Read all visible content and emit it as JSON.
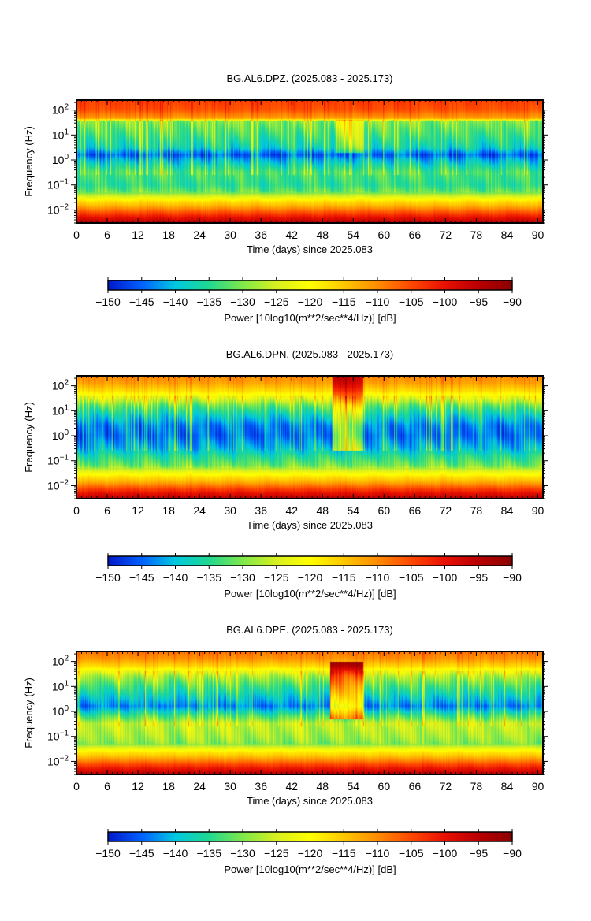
{
  "chart_data": [
    {
      "type": "heatmap",
      "title": "BG.AL6.DPZ. (2025.083 - 2025.173)",
      "xlabel": "Time (days) since 2025.083",
      "ylabel": "Frequency (Hz)",
      "xlim": [
        0,
        91
      ],
      "x_ticks": [
        0,
        6,
        12,
        18,
        24,
        30,
        36,
        42,
        48,
        54,
        60,
        66,
        72,
        78,
        84,
        90
      ],
      "y_scale": "log",
      "ylim": [
        0.003,
        250
      ],
      "y_ticks": [
        {
          "value": 0.01,
          "base": "10",
          "exp": "−2"
        },
        {
          "value": 0.1,
          "base": "10",
          "exp": "−1"
        },
        {
          "value": 1,
          "base": "10",
          "exp": "0"
        },
        {
          "value": 10,
          "base": "10",
          "exp": "1"
        },
        {
          "value": 100,
          "base": "10",
          "exp": "2"
        }
      ],
      "colorbar": {
        "label": "Power [10log10(m**2/sec**4/Hz)] [dB]",
        "range": [
          -150,
          -90
        ],
        "ticks": [
          "−150",
          "−145",
          "−140",
          "−135",
          "−130",
          "−125",
          "−120",
          "−115",
          "−110",
          "−105",
          "−100",
          "−95",
          "−90"
        ],
        "colors": [
          "#0018c8",
          "#0060ff",
          "#00c8e0",
          "#20d890",
          "#7ee84a",
          "#d8f020",
          "#ffff00",
          "#ffc800",
          "#ff8c00",
          "#ff4800",
          "#e81000",
          "#b80000",
          "#8c0000"
        ]
      },
      "profile": [
        {
          "log_f": -2.5,
          "db": -95
        },
        {
          "log_f": -2.15,
          "db": -104
        },
        {
          "log_f": -1.85,
          "db": -113
        },
        {
          "log_f": -1.6,
          "db": -119
        },
        {
          "log_f": -1.3,
          "db": -131
        },
        {
          "log_f": -1.0,
          "db": -135
        },
        {
          "log_f": -0.5,
          "db": -133
        },
        {
          "log_f": 0.0,
          "db": -141
        },
        {
          "log_f": 0.2,
          "db": -146
        },
        {
          "log_f": 0.5,
          "db": -138
        },
        {
          "log_f": 1.0,
          "db": -134
        },
        {
          "log_f": 1.55,
          "db": -130
        },
        {
          "log_f": 1.66,
          "db": -112
        },
        {
          "log_f": 2.0,
          "db": -106
        },
        {
          "log_f": 2.4,
          "db": -104
        }
      ],
      "anomalies": [
        {
          "x_range": [
            50.5,
            56
          ],
          "log_f_range": [
            0.3,
            1.6
          ],
          "db_offset": 8
        }
      ]
    },
    {
      "type": "heatmap",
      "title": "BG.AL6.DPN. (2025.083 - 2025.173)",
      "xlabel": "Time (days) since 2025.083",
      "ylabel": "Frequency (Hz)",
      "xlim": [
        0,
        91
      ],
      "x_ticks": [
        0,
        6,
        12,
        18,
        24,
        30,
        36,
        42,
        48,
        54,
        60,
        66,
        72,
        78,
        84,
        90
      ],
      "y_scale": "log",
      "ylim": [
        0.003,
        250
      ],
      "y_ticks": [
        {
          "value": 0.01,
          "base": "10",
          "exp": "−2"
        },
        {
          "value": 0.1,
          "base": "10",
          "exp": "−1"
        },
        {
          "value": 1,
          "base": "10",
          "exp": "0"
        },
        {
          "value": 10,
          "base": "10",
          "exp": "1"
        },
        {
          "value": 100,
          "base": "10",
          "exp": "2"
        }
      ],
      "colorbar": {
        "label": "Power [10log10(m**2/sec**4/Hz)] [dB]",
        "range": [
          -150,
          -90
        ],
        "ticks": [
          "−150",
          "−145",
          "−140",
          "−135",
          "−130",
          "−125",
          "−120",
          "−115",
          "−110",
          "−105",
          "−100",
          "−95",
          "−90"
        ],
        "colors": [
          "#0018c8",
          "#0060ff",
          "#00c8e0",
          "#20d890",
          "#7ee84a",
          "#d8f020",
          "#ffff00",
          "#ffc800",
          "#ff8c00",
          "#ff4800",
          "#e81000",
          "#b80000",
          "#8c0000"
        ]
      },
      "profile": [
        {
          "log_f": -2.5,
          "db": -95
        },
        {
          "log_f": -2.15,
          "db": -104
        },
        {
          "log_f": -1.85,
          "db": -113
        },
        {
          "log_f": -1.55,
          "db": -120
        },
        {
          "log_f": -1.2,
          "db": -131
        },
        {
          "log_f": -0.8,
          "db": -136
        },
        {
          "log_f": -0.5,
          "db": -141
        },
        {
          "log_f": 0.0,
          "db": -145
        },
        {
          "log_f": 0.4,
          "db": -144
        },
        {
          "log_f": 0.8,
          "db": -139
        },
        {
          "log_f": 1.2,
          "db": -132
        },
        {
          "log_f": 1.45,
          "db": -125
        },
        {
          "log_f": 1.8,
          "db": -117
        },
        {
          "log_f": 2.1,
          "db": -112
        },
        {
          "log_f": 2.4,
          "db": -110
        }
      ],
      "anomalies": [
        {
          "x_range": [
            50,
            56
          ],
          "log_f_range": [
            -0.6,
            2.4
          ],
          "db_offset": 14
        }
      ]
    },
    {
      "type": "heatmap",
      "title": "BG.AL6.DPE. (2025.083 - 2025.173)",
      "xlabel": "Time (days) since 2025.083",
      "ylabel": "Frequency (Hz)",
      "xlim": [
        0,
        91
      ],
      "x_ticks": [
        0,
        6,
        12,
        18,
        24,
        30,
        36,
        42,
        48,
        54,
        60,
        66,
        72,
        78,
        84,
        90
      ],
      "y_scale": "log",
      "ylim": [
        0.003,
        250
      ],
      "y_ticks": [
        {
          "value": 0.01,
          "base": "10",
          "exp": "−2"
        },
        {
          "value": 0.1,
          "base": "10",
          "exp": "−1"
        },
        {
          "value": 1,
          "base": "10",
          "exp": "0"
        },
        {
          "value": 10,
          "base": "10",
          "exp": "1"
        },
        {
          "value": 100,
          "base": "10",
          "exp": "2"
        }
      ],
      "colorbar": {
        "label": "Power [10log10(m**2/sec**4/Hz)] [dB]",
        "range": [
          -150,
          -90
        ],
        "ticks": [
          "−150",
          "−145",
          "−140",
          "−135",
          "−130",
          "−125",
          "−120",
          "−115",
          "−110",
          "−105",
          "−100",
          "−95",
          "−90"
        ],
        "colors": [
          "#0018c8",
          "#0060ff",
          "#00c8e0",
          "#20d890",
          "#7ee84a",
          "#d8f020",
          "#ffff00",
          "#ffc800",
          "#ff8c00",
          "#ff4800",
          "#e81000",
          "#b80000",
          "#8c0000"
        ]
      },
      "profile": [
        {
          "log_f": -2.5,
          "db": -95
        },
        {
          "log_f": -2.15,
          "db": -104
        },
        {
          "log_f": -1.85,
          "db": -113
        },
        {
          "log_f": -1.6,
          "db": -119
        },
        {
          "log_f": -1.3,
          "db": -130
        },
        {
          "log_f": -1.0,
          "db": -128
        },
        {
          "log_f": -0.5,
          "db": -126
        },
        {
          "log_f": -0.2,
          "db": -133
        },
        {
          "log_f": 0.2,
          "db": -144
        },
        {
          "log_f": 0.6,
          "db": -139
        },
        {
          "log_f": 1.0,
          "db": -134
        },
        {
          "log_f": 1.4,
          "db": -128
        },
        {
          "log_f": 1.8,
          "db": -117
        },
        {
          "log_f": 2.1,
          "db": -111
        },
        {
          "log_f": 2.4,
          "db": -108
        }
      ],
      "anomalies": [
        {
          "x_range": [
            49.5,
            56
          ],
          "log_f_range": [
            -0.3,
            2.0
          ],
          "db_offset": 22
        }
      ]
    }
  ]
}
